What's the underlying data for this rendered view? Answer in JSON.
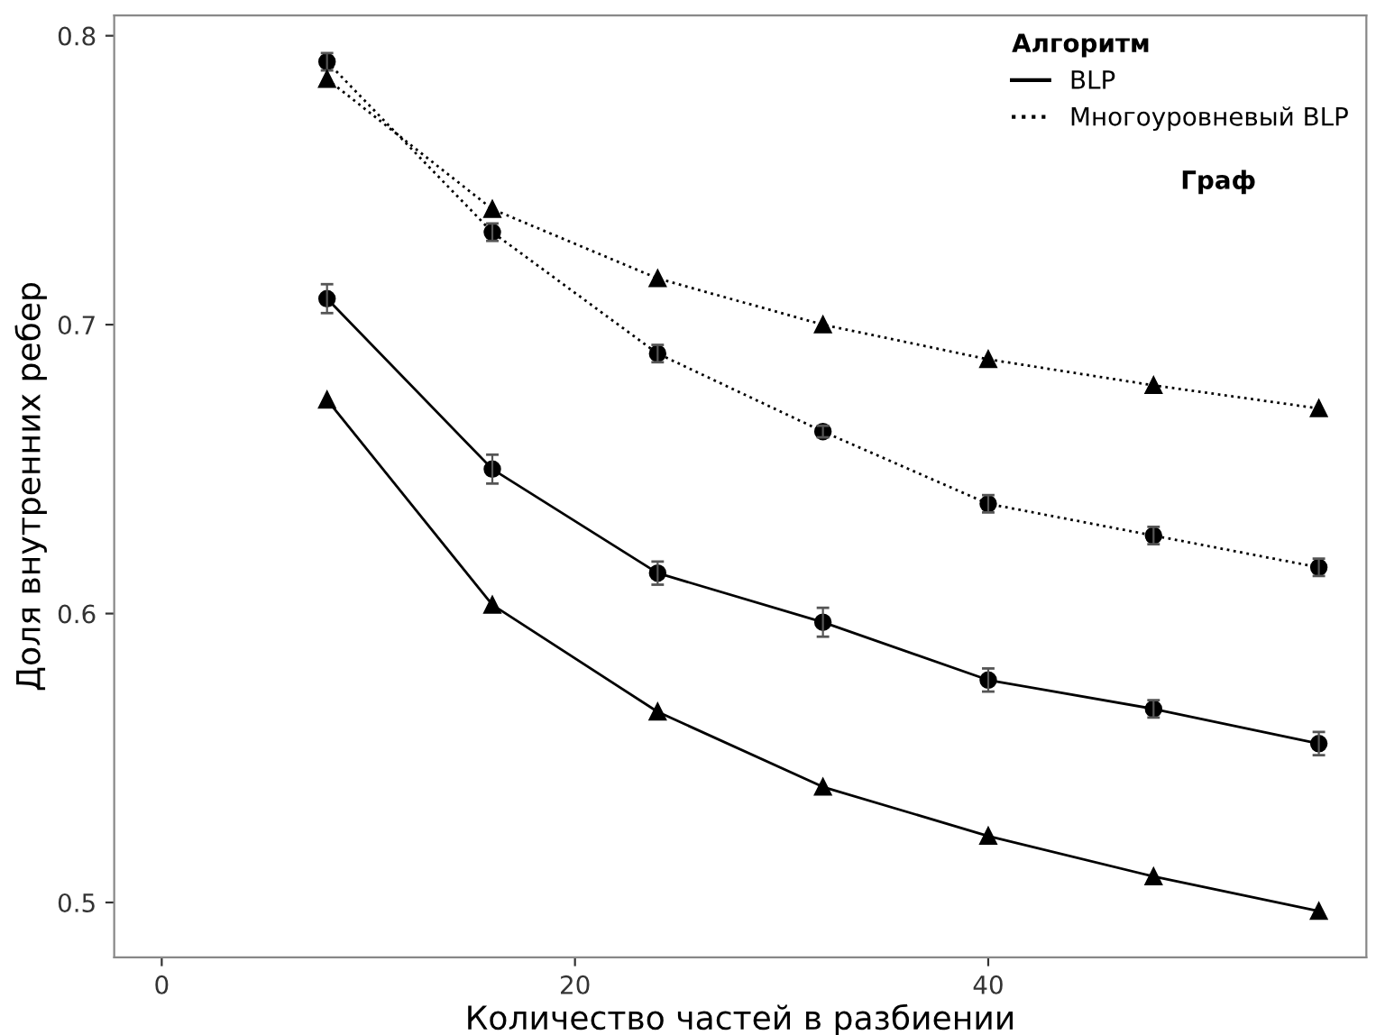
{
  "chart_data": {
    "type": "line",
    "xlabel": "Количество частей в разбиении",
    "ylabel": "Доля внутренних ребер",
    "x": [
      8,
      16,
      24,
      32,
      40,
      48,
      56
    ],
    "xlim": [
      -2.3,
      58.3
    ],
    "xticks": [
      0,
      20,
      40
    ],
    "ylim": [
      0.481,
      0.807
    ],
    "yticks": [
      0.5,
      0.6,
      0.7,
      0.8
    ],
    "grid": false,
    "legend": "top right",
    "legend_title": [
      "Алгоритм",
      "Граф"
    ],
    "series": [
      {
        "name": "BLP",
        "color": "#000000",
        "line_style": "solid",
        "marker": "circle",
        "values": [
          0.709,
          0.65,
          0.614,
          0.597,
          0.577,
          0.567,
          0.555
        ],
        "errors": [
          0.005,
          0.005,
          0.004,
          0.005,
          0.004,
          0.003,
          0.004
        ]
      },
      {
        "color": "#000000",
        "line_style": "solid",
        "marker": "triangle",
        "values": [
          0.674,
          0.603,
          0.566,
          0.54,
          0.523,
          0.509,
          0.497
        ]
      },
      {
        "name": "Многоуровневый BLP",
        "color": "#000000",
        "line_style": "dotted",
        "marker": "circle",
        "values": [
          0.791,
          0.732,
          0.69,
          0.663,
          0.638,
          0.627,
          0.616
        ],
        "errors": [
          0.003,
          0.003,
          0.003,
          0.002,
          0.003,
          0.003,
          0.003
        ]
      },
      {
        "color": "#000000",
        "line_style": "dotted",
        "marker": "triangle",
        "values": [
          0.785,
          0.74,
          0.716,
          0.7,
          0.688,
          0.679,
          0.671
        ]
      }
    ]
  }
}
